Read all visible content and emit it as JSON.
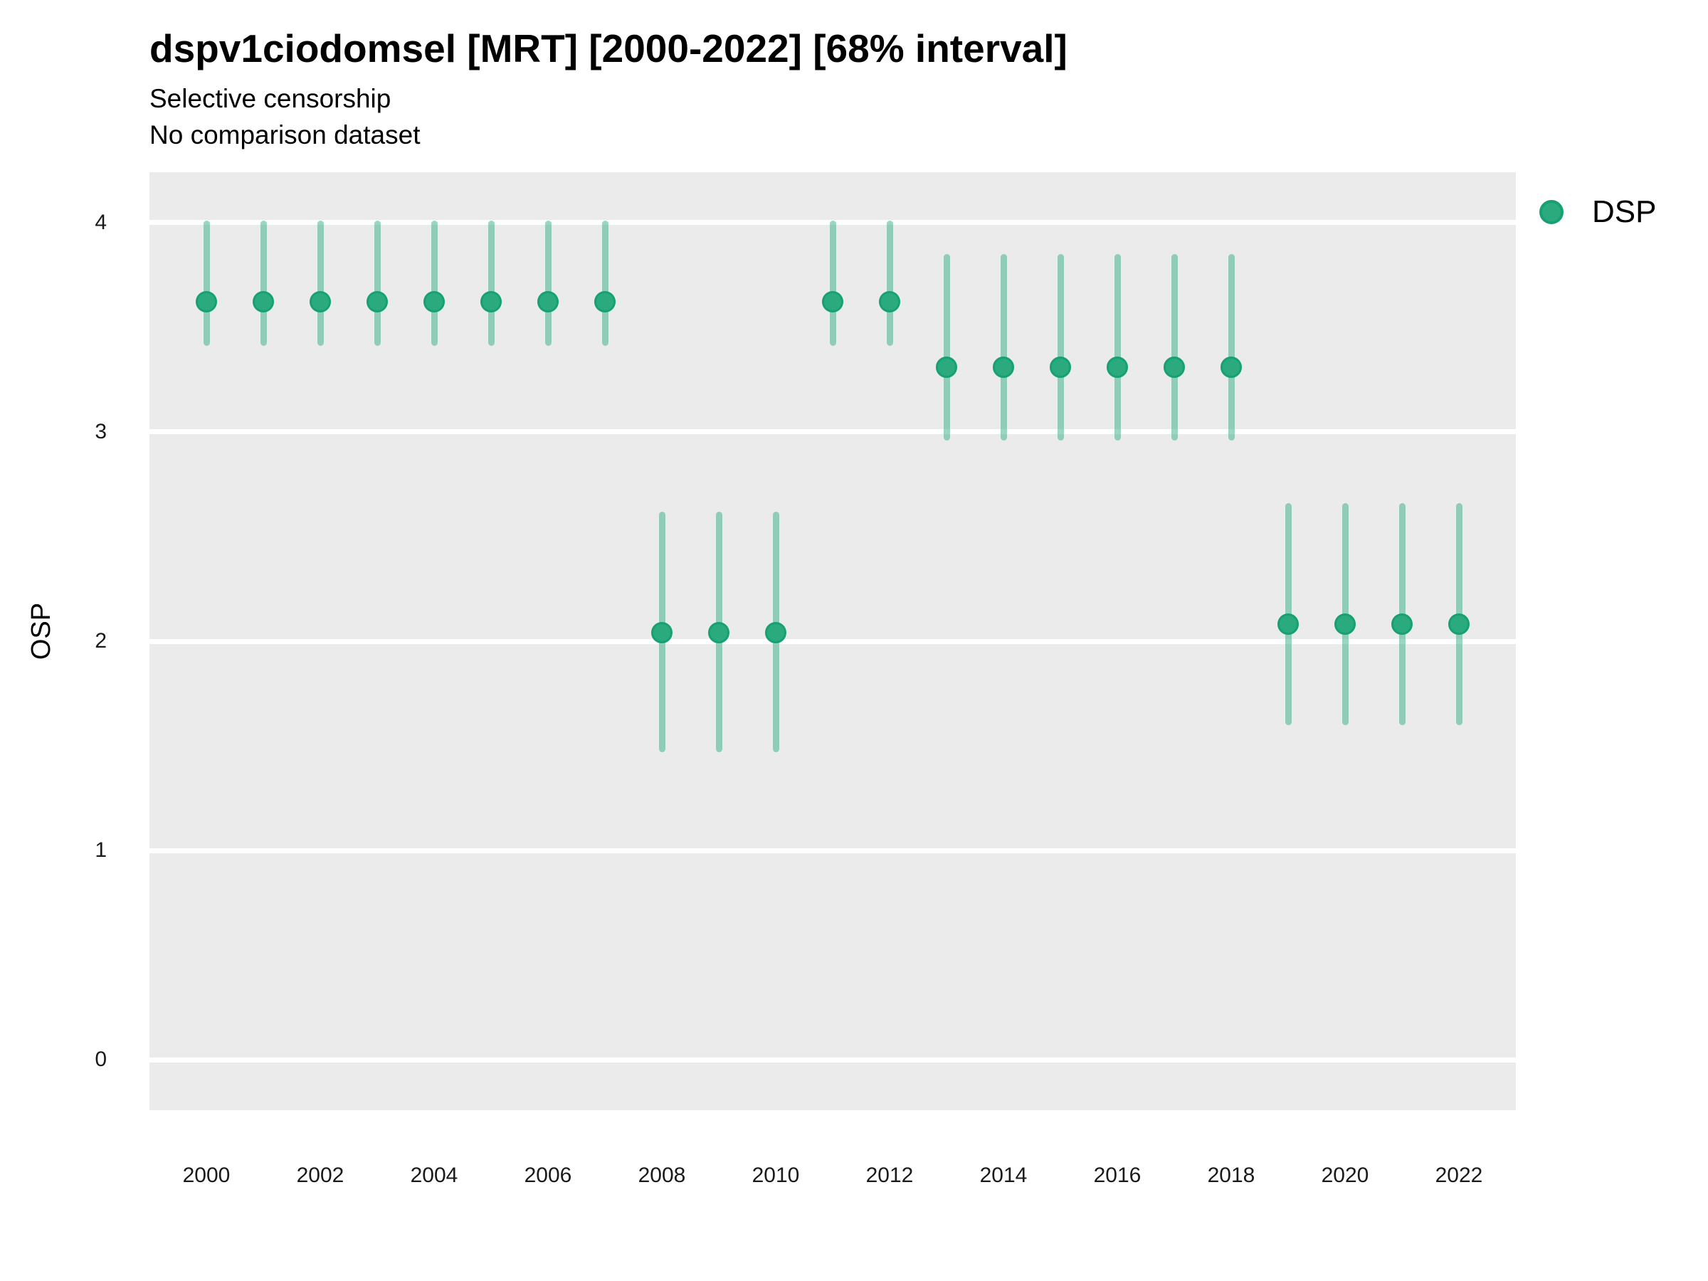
{
  "header": {
    "title": "dspv1ciodomsel [MRT] [2000-2022] [68% interval]",
    "subtitle1": "Selective censorship",
    "subtitle2": "No comparison dataset"
  },
  "legend": {
    "items": [
      {
        "label": "DSP",
        "marker_color": "#2BAA7E"
      }
    ]
  },
  "colors": {
    "panel_background": "#EBEBEB",
    "gridline": "#FFFFFF",
    "point_fill": "#2BAA7E",
    "point_stroke": "#16A173",
    "interval_line": "rgba(43,170,126,0.48)",
    "text": "#000000",
    "tick_text": "#1a1a1a"
  },
  "chart_data": {
    "type": "scatter",
    "title": "dspv1ciodomsel [MRT] [2000-2022] [68% interval]",
    "subtitle": [
      "Selective censorship",
      "No comparison dataset"
    ],
    "xlabel": "",
    "ylabel": "OSP",
    "interval": "68%",
    "grid": "major horizontal white gridlines on gray panel",
    "legend_position": "right-top",
    "xlim": [
      1999,
      2023
    ],
    "ylim": [
      -0.24,
      4.24
    ],
    "y_ticks": [
      0,
      1,
      2,
      3,
      4
    ],
    "x_ticks": [
      2000,
      2002,
      2004,
      2006,
      2008,
      2010,
      2012,
      2014,
      2016,
      2018,
      2020,
      2022
    ],
    "series": [
      {
        "name": "DSP",
        "points": [
          {
            "x": 2000,
            "y": 3.62,
            "lo": 3.41,
            "hi": 4.01
          },
          {
            "x": 2001,
            "y": 3.62,
            "lo": 3.41,
            "hi": 4.01
          },
          {
            "x": 2002,
            "y": 3.62,
            "lo": 3.41,
            "hi": 4.01
          },
          {
            "x": 2003,
            "y": 3.62,
            "lo": 3.41,
            "hi": 4.01
          },
          {
            "x": 2004,
            "y": 3.62,
            "lo": 3.41,
            "hi": 4.01
          },
          {
            "x": 2005,
            "y": 3.62,
            "lo": 3.41,
            "hi": 4.01
          },
          {
            "x": 2006,
            "y": 3.62,
            "lo": 3.41,
            "hi": 4.01
          },
          {
            "x": 2007,
            "y": 3.62,
            "lo": 3.41,
            "hi": 4.01
          },
          {
            "x": 2008,
            "y": 2.04,
            "lo": 1.47,
            "hi": 2.62
          },
          {
            "x": 2009,
            "y": 2.04,
            "lo": 1.47,
            "hi": 2.62
          },
          {
            "x": 2010,
            "y": 2.04,
            "lo": 1.47,
            "hi": 2.62
          },
          {
            "x": 2011,
            "y": 3.62,
            "lo": 3.41,
            "hi": 4.01
          },
          {
            "x": 2012,
            "y": 3.62,
            "lo": 3.41,
            "hi": 4.01
          },
          {
            "x": 2013,
            "y": 3.31,
            "lo": 2.96,
            "hi": 3.85
          },
          {
            "x": 2014,
            "y": 3.31,
            "lo": 2.96,
            "hi": 3.85
          },
          {
            "x": 2015,
            "y": 3.31,
            "lo": 2.96,
            "hi": 3.85
          },
          {
            "x": 2016,
            "y": 3.31,
            "lo": 2.96,
            "hi": 3.85
          },
          {
            "x": 2017,
            "y": 3.31,
            "lo": 2.96,
            "hi": 3.85
          },
          {
            "x": 2018,
            "y": 3.31,
            "lo": 2.96,
            "hi": 3.85
          },
          {
            "x": 2019,
            "y": 2.08,
            "lo": 1.6,
            "hi": 2.66
          },
          {
            "x": 2020,
            "y": 2.08,
            "lo": 1.6,
            "hi": 2.66
          },
          {
            "x": 2021,
            "y": 2.08,
            "lo": 1.6,
            "hi": 2.66
          },
          {
            "x": 2022,
            "y": 2.08,
            "lo": 1.6,
            "hi": 2.66
          }
        ]
      }
    ]
  }
}
